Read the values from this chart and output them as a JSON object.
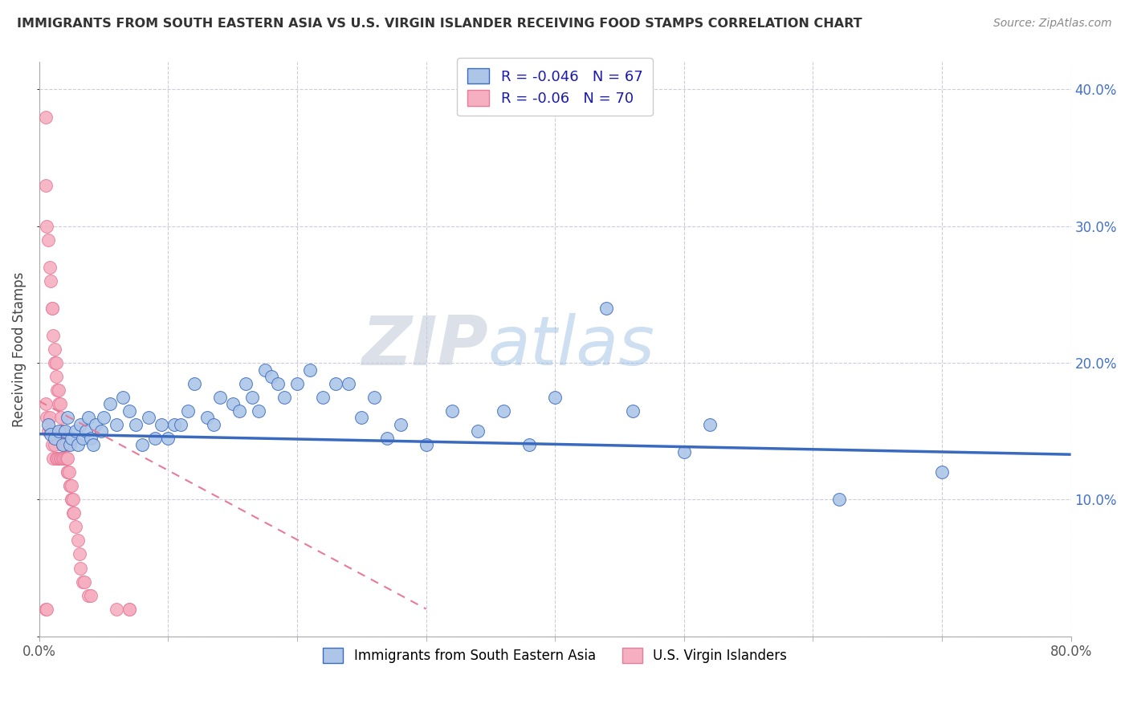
{
  "title": "IMMIGRANTS FROM SOUTH EASTERN ASIA VS U.S. VIRGIN ISLANDER RECEIVING FOOD STAMPS CORRELATION CHART",
  "source": "Source: ZipAtlas.com",
  "xlabel_blue": "Immigrants from South Eastern Asia",
  "xlabel_pink": "U.S. Virgin Islanders",
  "ylabel": "Receiving Food Stamps",
  "R_blue": -0.046,
  "N_blue": 67,
  "R_pink": -0.06,
  "N_pink": 70,
  "color_blue": "#adc6e8",
  "color_pink": "#f5afc0",
  "line_blue": "#3a6abf",
  "line_pink": "#e87a9a",
  "xmin": 0.0,
  "xmax": 0.8,
  "ymin": 0.0,
  "ymax": 0.42,
  "yticks_right": [
    0.1,
    0.2,
    0.3,
    0.4
  ],
  "ytick_labels_right": [
    "10.0%",
    "20.0%",
    "30.0%",
    "40.0%"
  ],
  "blue_trend_x": [
    0.0,
    0.8
  ],
  "blue_trend_y": [
    0.148,
    0.133
  ],
  "pink_trend_x0": 0.0,
  "pink_trend_x1": 0.3,
  "pink_trend_y0": 0.172,
  "pink_trend_y1": 0.02,
  "blue_x": [
    0.007,
    0.009,
    0.012,
    0.015,
    0.018,
    0.02,
    0.022,
    0.024,
    0.025,
    0.028,
    0.03,
    0.032,
    0.034,
    0.036,
    0.038,
    0.04,
    0.042,
    0.044,
    0.048,
    0.05,
    0.055,
    0.06,
    0.065,
    0.07,
    0.075,
    0.08,
    0.085,
    0.09,
    0.095,
    0.1,
    0.105,
    0.11,
    0.115,
    0.12,
    0.13,
    0.135,
    0.14,
    0.15,
    0.155,
    0.16,
    0.165,
    0.17,
    0.175,
    0.18,
    0.185,
    0.19,
    0.2,
    0.21,
    0.22,
    0.23,
    0.24,
    0.25,
    0.26,
    0.27,
    0.28,
    0.3,
    0.32,
    0.34,
    0.36,
    0.38,
    0.4,
    0.44,
    0.46,
    0.5,
    0.52,
    0.62,
    0.7
  ],
  "blue_y": [
    0.155,
    0.148,
    0.145,
    0.15,
    0.14,
    0.15,
    0.16,
    0.14,
    0.145,
    0.15,
    0.14,
    0.155,
    0.145,
    0.15,
    0.16,
    0.145,
    0.14,
    0.155,
    0.15,
    0.16,
    0.17,
    0.155,
    0.175,
    0.165,
    0.155,
    0.14,
    0.16,
    0.145,
    0.155,
    0.145,
    0.155,
    0.155,
    0.165,
    0.185,
    0.16,
    0.155,
    0.175,
    0.17,
    0.165,
    0.185,
    0.175,
    0.165,
    0.195,
    0.19,
    0.185,
    0.175,
    0.185,
    0.195,
    0.175,
    0.185,
    0.185,
    0.16,
    0.175,
    0.145,
    0.155,
    0.14,
    0.165,
    0.15,
    0.165,
    0.14,
    0.175,
    0.24,
    0.165,
    0.135,
    0.155,
    0.1,
    0.12
  ],
  "pink_x": [
    0.005,
    0.005,
    0.005,
    0.006,
    0.006,
    0.007,
    0.007,
    0.008,
    0.008,
    0.009,
    0.009,
    0.01,
    0.01,
    0.01,
    0.011,
    0.011,
    0.012,
    0.012,
    0.012,
    0.013,
    0.013,
    0.013,
    0.014,
    0.014,
    0.015,
    0.015,
    0.015,
    0.016,
    0.016,
    0.017,
    0.017,
    0.017,
    0.018,
    0.018,
    0.018,
    0.018,
    0.019,
    0.019,
    0.019,
    0.02,
    0.02,
    0.02,
    0.021,
    0.021,
    0.022,
    0.022,
    0.022,
    0.022,
    0.023,
    0.024,
    0.024,
    0.025,
    0.025,
    0.025,
    0.026,
    0.026,
    0.027,
    0.028,
    0.03,
    0.031,
    0.032,
    0.034,
    0.035,
    0.038,
    0.04,
    0.06,
    0.07,
    0.07,
    0.005,
    0.006
  ],
  "pink_y": [
    0.38,
    0.33,
    0.17,
    0.3,
    0.16,
    0.29,
    0.15,
    0.27,
    0.16,
    0.26,
    0.15,
    0.24,
    0.24,
    0.14,
    0.22,
    0.13,
    0.21,
    0.2,
    0.14,
    0.2,
    0.19,
    0.13,
    0.18,
    0.13,
    0.18,
    0.17,
    0.13,
    0.17,
    0.13,
    0.16,
    0.15,
    0.13,
    0.15,
    0.15,
    0.14,
    0.13,
    0.14,
    0.14,
    0.13,
    0.14,
    0.14,
    0.13,
    0.14,
    0.13,
    0.13,
    0.12,
    0.12,
    0.12,
    0.12,
    0.11,
    0.11,
    0.11,
    0.1,
    0.1,
    0.1,
    0.09,
    0.09,
    0.08,
    0.07,
    0.06,
    0.05,
    0.04,
    0.04,
    0.03,
    0.03,
    0.02,
    0.02,
    0.02,
    0.02,
    0.02
  ]
}
